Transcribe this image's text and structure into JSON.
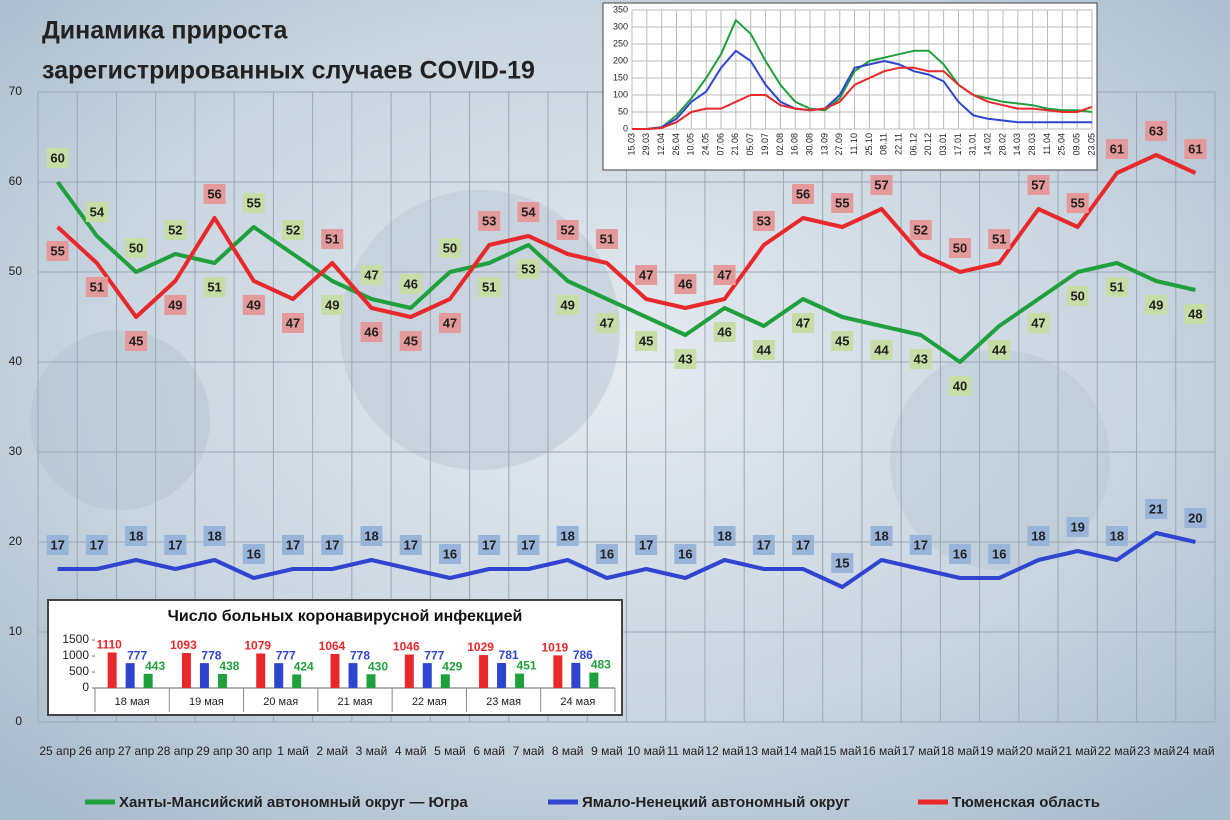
{
  "chart_data": [
    {
      "type": "line",
      "title": [
        "Динамика прироста",
        "зарегистрированных случаев COVID-19"
      ],
      "categories": [
        "25 апр",
        "26 апр",
        "27 апр",
        "28 апр",
        "29 апр",
        "30 апр",
        "1 май",
        "2 май",
        "3 май",
        "4 май",
        "5 май",
        "6 май",
        "7 май",
        "8 май",
        "9 май",
        "10 май",
        "11 май",
        "12 май",
        "13 май",
        "14 май",
        "15 май",
        "16 май",
        "17 май",
        "18 май",
        "19 май",
        "20 май",
        "21 май",
        "22 май",
        "23 май",
        "24 май"
      ],
      "series": [
        {
          "name": "Ханты-Мансийский автономный округ — Югра",
          "color": "#1fa03c",
          "label_color": "#c6dda6",
          "values": [
            60,
            54,
            50,
            52,
            51,
            55,
            52,
            49,
            47,
            46,
            50,
            51,
            53,
            49,
            47,
            45,
            43,
            46,
            44,
            47,
            45,
            44,
            43,
            40,
            44,
            47,
            50,
            51,
            49,
            48
          ]
        },
        {
          "name": "Ямало-Ненецкий автономный округ",
          "color": "#2f45d0",
          "label_color": "#98b4d8",
          "values": [
            17,
            17,
            18,
            17,
            18,
            16,
            17,
            17,
            18,
            17,
            16,
            17,
            17,
            18,
            16,
            17,
            16,
            18,
            17,
            17,
            15,
            18,
            17,
            16,
            16,
            18,
            19,
            18,
            21,
            20
          ]
        },
        {
          "name": "Тюменская область",
          "color": "#e8282a",
          "label_color": "#e49a9a",
          "values": [
            55,
            51,
            45,
            49,
            56,
            49,
            47,
            51,
            46,
            45,
            47,
            53,
            54,
            52,
            51,
            47,
            46,
            47,
            53,
            56,
            55,
            57,
            52,
            50,
            51,
            57,
            55,
            61,
            63,
            61
          ]
        }
      ],
      "ylim": [
        0,
        70
      ],
      "yticks": [
        0,
        10,
        20,
        30,
        40,
        50,
        60,
        70
      ],
      "grid": true
    },
    {
      "type": "line",
      "categories": [
        "15.03",
        "29.03",
        "12.04",
        "26.04",
        "10.05",
        "24.05",
        "07.06",
        "21.06",
        "05.07",
        "19.07",
        "02.08",
        "16.08",
        "30.08",
        "13.09",
        "27.09",
        "11.10",
        "25.10",
        "08.11",
        "22.11",
        "06.12",
        "20.12",
        "03.01",
        "17.01",
        "31.01",
        "14.02",
        "28.02",
        "14.03",
        "28.03",
        "11.04",
        "25.04",
        "09.05",
        "23.05"
      ],
      "series": [
        {
          "color": "#1fa03c",
          "values": [
            0,
            0,
            5,
            40,
            90,
            150,
            220,
            320,
            280,
            200,
            130,
            80,
            60,
            55,
            90,
            170,
            200,
            210,
            220,
            230,
            230,
            190,
            130,
            100,
            90,
            80,
            75,
            70,
            60,
            55,
            55,
            50
          ]
        },
        {
          "color": "#2f45d0",
          "values": [
            0,
            0,
            5,
            30,
            80,
            110,
            180,
            230,
            200,
            130,
            80,
            60,
            55,
            60,
            100,
            180,
            190,
            200,
            190,
            170,
            160,
            140,
            80,
            40,
            30,
            25,
            20,
            20,
            20,
            20,
            20,
            20
          ]
        },
        {
          "color": "#e8282a",
          "values": [
            0,
            0,
            3,
            20,
            50,
            60,
            60,
            80,
            100,
            100,
            70,
            60,
            55,
            60,
            80,
            130,
            150,
            170,
            180,
            180,
            170,
            170,
            130,
            100,
            80,
            70,
            60,
            60,
            55,
            50,
            50,
            65
          ]
        }
      ],
      "ylim": [
        0,
        350
      ],
      "yticks": [
        0,
        50,
        100,
        150,
        200,
        250,
        300,
        350
      ],
      "grid": true
    },
    {
      "type": "bar",
      "title": "Число больных коронавирусной  инфекцией",
      "categories": [
        "18 мая",
        "19 мая",
        "20 мая",
        "21 мая",
        "22 мая",
        "23 мая",
        "24 мая"
      ],
      "series": [
        {
          "color": "#e8282a",
          "values": [
            1110,
            1093,
            1079,
            1064,
            1046,
            1029,
            1019
          ]
        },
        {
          "color": "#2f45d0",
          "values": [
            777,
            778,
            777,
            778,
            777,
            781,
            786
          ]
        },
        {
          "color": "#1fa03c",
          "values": [
            443,
            438,
            424,
            430,
            429,
            451,
            483
          ]
        }
      ],
      "ylim": [
        0,
        1500
      ],
      "yticks": [
        0,
        500,
        1000,
        1500
      ]
    }
  ]
}
